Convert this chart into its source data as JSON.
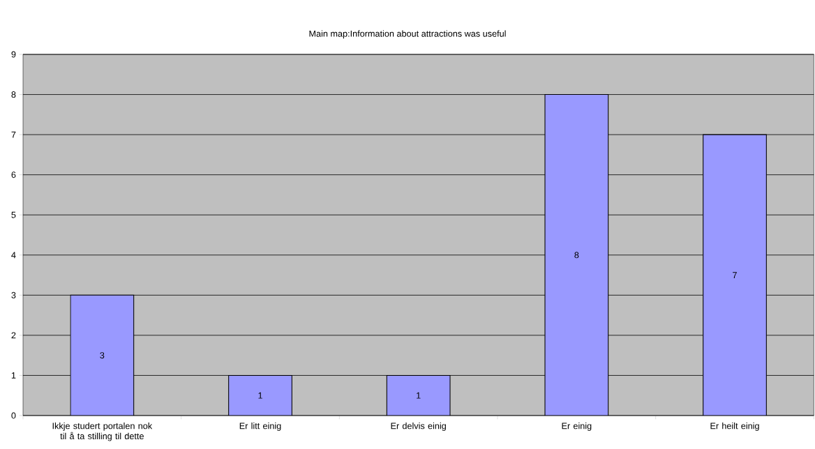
{
  "chart_data": {
    "type": "bar",
    "title": "Main map:Information about attractions was useful",
    "categories": [
      "Ikkje studert portalen nok til å ta stilling til dette",
      "Er litt einig",
      "Er delvis einig",
      "Er einig",
      "Er heilt einig"
    ],
    "values": [
      3,
      1,
      1,
      8,
      7
    ],
    "color": "#9999ff",
    "ylim": [
      0,
      9
    ],
    "yticks": [
      0,
      1,
      2,
      3,
      4,
      5,
      6,
      7,
      8,
      9
    ],
    "grid": "y",
    "data_labels": true
  }
}
